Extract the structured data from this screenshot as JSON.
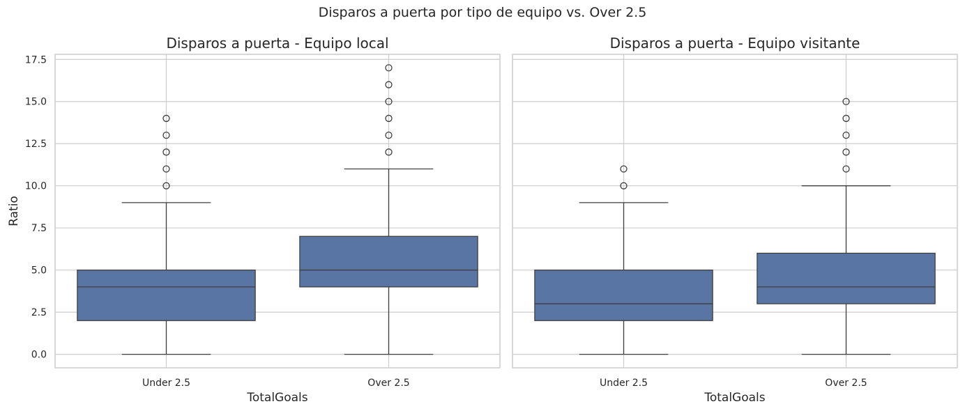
{
  "figure": {
    "suptitle": "Disparos a puerta por tipo de equipo vs. Over 2.5"
  },
  "chart_data": [
    {
      "type": "box",
      "title": "Disparos a puerta - Equipo local",
      "xlabel": "TotalGoals",
      "ylabel": "Ratio",
      "categories": [
        "Under 2.5",
        "Over 2.5"
      ],
      "ylim": [
        -0.8,
        17.8
      ],
      "yticks": [
        "0.0",
        "2.5",
        "5.0",
        "7.5",
        "10.0",
        "12.5",
        "15.0",
        "17.5"
      ],
      "grid": true,
      "box_color": "#5875a4",
      "boxes": [
        {
          "category": "Under 2.5",
          "whisker_low": 0,
          "q1": 2,
          "median": 4,
          "q3": 5,
          "whisker_high": 9,
          "outliers": [
            10,
            11,
            12,
            13,
            14
          ]
        },
        {
          "category": "Over 2.5",
          "whisker_low": 0,
          "q1": 4,
          "median": 5,
          "q3": 7,
          "whisker_high": 11,
          "outliers": [
            12,
            13,
            14,
            15,
            16,
            17
          ]
        }
      ]
    },
    {
      "type": "box",
      "title": "Disparos a puerta - Equipo visitante",
      "xlabel": "TotalGoals",
      "ylabel": "",
      "categories": [
        "Under 2.5",
        "Over 2.5"
      ],
      "ylim": [
        -0.8,
        17.8
      ],
      "yticks": [],
      "grid": true,
      "box_color": "#5875a4",
      "boxes": [
        {
          "category": "Under 2.5",
          "whisker_low": 0,
          "q1": 2,
          "median": 3,
          "q3": 5,
          "whisker_high": 9,
          "outliers": [
            10,
            11
          ]
        },
        {
          "category": "Over 2.5",
          "whisker_low": 0,
          "q1": 3,
          "median": 4,
          "q3": 6,
          "whisker_high": 10,
          "outliers": [
            11,
            12,
            13,
            14,
            15
          ]
        }
      ]
    }
  ]
}
